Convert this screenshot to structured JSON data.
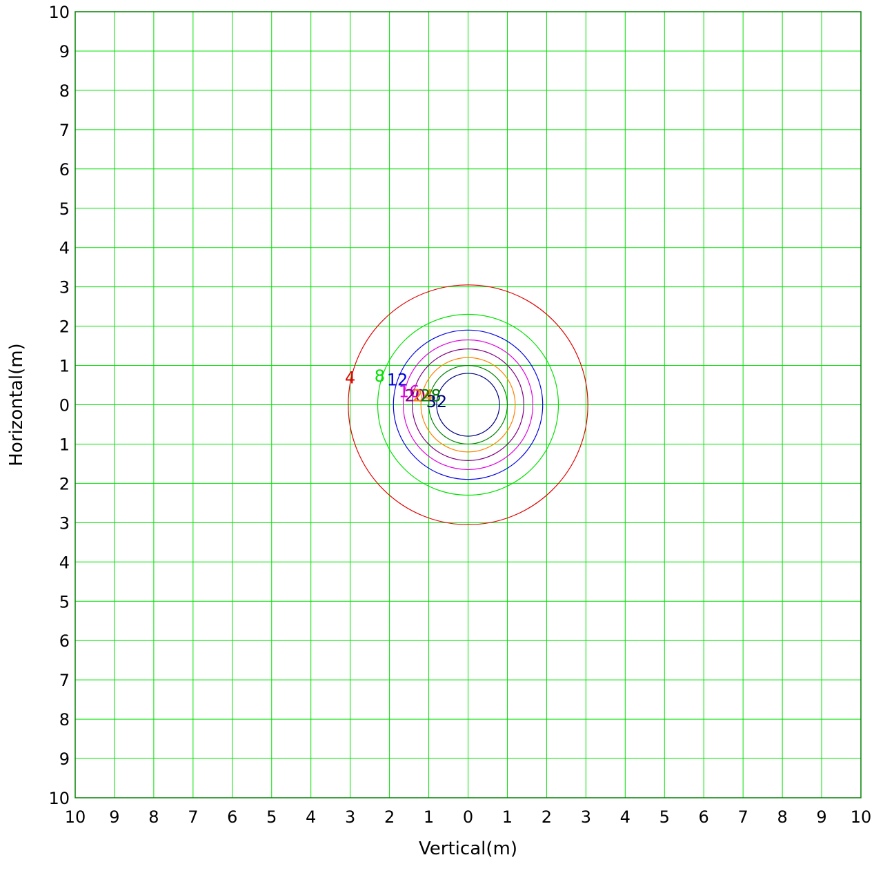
{
  "chart_data": {
    "type": "contour",
    "title": "",
    "xlabel": "Vertical(m)",
    "ylabel": "Horizontal(m)",
    "xlim": [
      -10,
      10
    ],
    "ylim": [
      -10,
      10
    ],
    "grid": true,
    "grid_color": "#00e000",
    "x_tick_labels": [
      "10",
      "9",
      "8",
      "7",
      "6",
      "5",
      "4",
      "3",
      "2",
      "1",
      "0",
      "1",
      "2",
      "3",
      "4",
      "5",
      "6",
      "7",
      "8",
      "9",
      "10"
    ],
    "y_tick_labels": [
      "10",
      "9",
      "8",
      "7",
      "6",
      "5",
      "4",
      "3",
      "2",
      "1",
      "0",
      "1",
      "2",
      "3",
      "4",
      "5",
      "6",
      "7",
      "8",
      "9",
      "10"
    ],
    "contours": [
      {
        "level": 4,
        "label": "4",
        "radius": 3.05,
        "color": "#e00000",
        "label_x": -3.0,
        "label_y": 0.7
      },
      {
        "level": 8,
        "label": "8",
        "radius": 2.3,
        "color": "#00e000",
        "label_x": -2.25,
        "label_y": 0.75
      },
      {
        "level": 12,
        "label": "12",
        "radius": 1.9,
        "color": "#0000e0",
        "label_x": -1.8,
        "label_y": 0.65
      },
      {
        "level": 16,
        "label": "16",
        "radius": 1.65,
        "color": "#e000e0",
        "label_x": -1.5,
        "label_y": 0.35
      },
      {
        "level": 20,
        "label": "20",
        "radius": 1.42,
        "color": "#800080",
        "label_x": -1.35,
        "label_y": 0.25
      },
      {
        "level": 24,
        "label": "24",
        "radius": 1.2,
        "color": "#ff8000",
        "label_x": -1.15,
        "label_y": 0.25
      },
      {
        "level": 28,
        "label": "28",
        "radius": 1.0,
        "color": "#008000",
        "label_x": -0.95,
        "label_y": 0.25
      },
      {
        "level": 32,
        "label": "32",
        "radius": 0.8,
        "color": "#000080",
        "label_x": -0.8,
        "label_y": 0.1
      }
    ]
  }
}
